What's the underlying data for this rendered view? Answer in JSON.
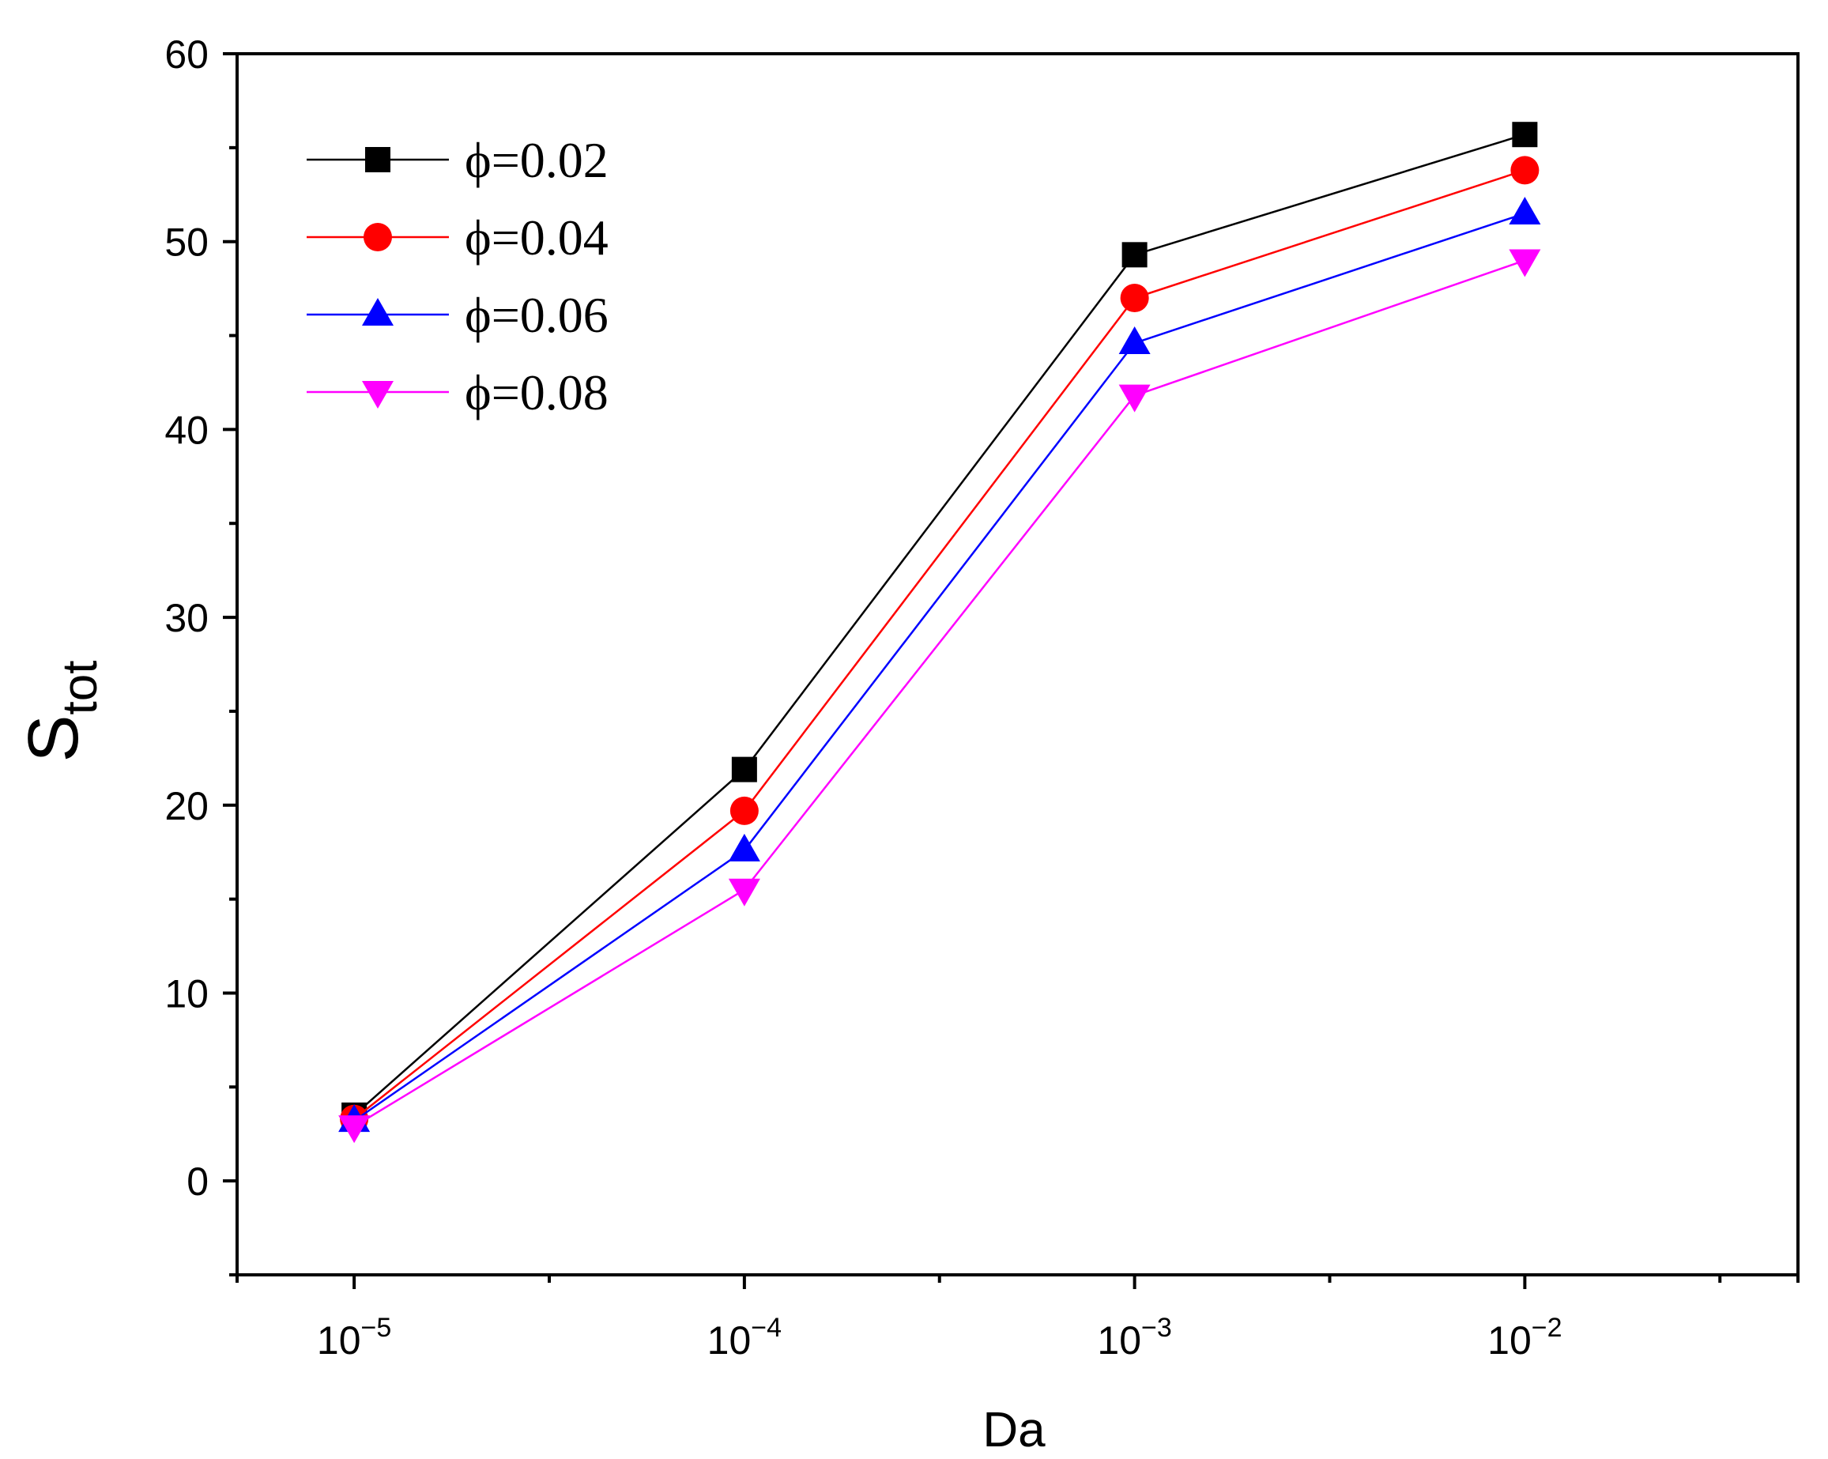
{
  "chart_data": {
    "type": "line",
    "title": "",
    "xlabel": "Da",
    "ylabel": {
      "main": "S",
      "sub": "tot"
    },
    "x_scale": "log",
    "x": [
      -5,
      -4,
      -3,
      -2
    ],
    "x_tick_labels": [
      {
        "base": "10",
        "exp": "−5"
      },
      {
        "base": "10",
        "exp": "−4"
      },
      {
        "base": "10",
        "exp": "−3"
      },
      {
        "base": "10",
        "exp": "−2"
      }
    ],
    "xlim": [
      -5.3,
      -1.3
    ],
    "ylim": [
      -5,
      60
    ],
    "y_ticks": [
      0,
      10,
      20,
      30,
      40,
      50,
      60
    ],
    "y_tick_labels": [
      "0",
      "10",
      "20",
      "30",
      "40",
      "50",
      "60"
    ],
    "grid": false,
    "legend_position": "top-left",
    "series": [
      {
        "name": "ϕ=0.02",
        "color": "#000000",
        "marker": "square",
        "values": [
          3.5,
          21.9,
          49.3,
          55.7
        ]
      },
      {
        "name": "ϕ=0.04",
        "color": "#ff0000",
        "marker": "circle",
        "values": [
          3.3,
          19.7,
          47.0,
          53.8
        ]
      },
      {
        "name": "ϕ=0.06",
        "color": "#0000ff",
        "marker": "triangle-up",
        "values": [
          3.2,
          17.6,
          44.6,
          51.5
        ]
      },
      {
        "name": "ϕ=0.08",
        "color": "#ff00ff",
        "marker": "triangle-down",
        "values": [
          2.9,
          15.5,
          41.8,
          49.0
        ]
      }
    ]
  }
}
